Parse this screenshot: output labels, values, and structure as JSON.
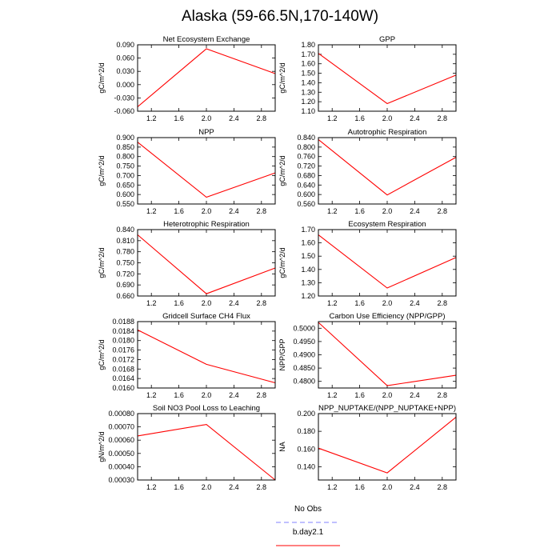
{
  "title": "Alaska (59-66.5N,170-140W)",
  "legend": {
    "placement": "bottom-center",
    "entries": [
      {
        "label": "No Obs",
        "color": "#8080ff",
        "dash": true
      },
      {
        "label": "b.day2.1",
        "color": "#ff0000",
        "dash": false
      }
    ]
  },
  "chart_data": [
    {
      "type": "line",
      "title": "Net Ecosystem Exchange",
      "ylabel": "gC/m^2/d",
      "xlim": [
        1.0,
        3.0
      ],
      "ylim": [
        -0.06,
        0.09
      ],
      "xticks": [
        1.2,
        1.6,
        2.0,
        2.4,
        2.8
      ],
      "xtick_labels": [
        "1.2",
        "1.6",
        "2.0",
        "2.4",
        "2.8"
      ],
      "yticks": [
        -0.06,
        -0.03,
        0.0,
        0.03,
        0.06,
        0.09
      ],
      "ytick_labels": [
        "-0.060",
        "-0.030",
        "0.000",
        "0.030",
        "0.060",
        "0.090"
      ],
      "series": [
        {
          "name": "b.day2.1",
          "color": "#ff0000",
          "x": [
            1,
            2,
            3
          ],
          "y": [
            -0.05,
            0.081,
            0.025
          ]
        }
      ]
    },
    {
      "type": "line",
      "title": "GPP",
      "ylabel": "gC/m^2/d",
      "xlim": [
        1.0,
        3.0
      ],
      "ylim": [
        1.1,
        1.8
      ],
      "xticks": [
        1.2,
        1.6,
        2.0,
        2.4,
        2.8
      ],
      "xtick_labels": [
        "1.2",
        "1.6",
        "2.0",
        "2.4",
        "2.8"
      ],
      "yticks": [
        1.1,
        1.2,
        1.3,
        1.4,
        1.5,
        1.6,
        1.7,
        1.8
      ],
      "ytick_labels": [
        "1.10",
        "1.20",
        "1.30",
        "1.40",
        "1.50",
        "1.60",
        "1.70",
        "1.80"
      ],
      "series": [
        {
          "name": "b.day2.1",
          "color": "#ff0000",
          "x": [
            1,
            2,
            3
          ],
          "y": [
            1.71,
            1.18,
            1.48
          ]
        }
      ]
    },
    {
      "type": "line",
      "title": "NPP",
      "ylabel": "gC/m^2/d",
      "xlim": [
        1.0,
        3.0
      ],
      "ylim": [
        0.55,
        0.9
      ],
      "xticks": [
        1.2,
        1.6,
        2.0,
        2.4,
        2.8
      ],
      "xtick_labels": [
        "1.2",
        "1.6",
        "2.0",
        "2.4",
        "2.8"
      ],
      "yticks": [
        0.55,
        0.6,
        0.65,
        0.7,
        0.75,
        0.8,
        0.85,
        0.9
      ],
      "ytick_labels": [
        "0.550",
        "0.600",
        "0.650",
        "0.700",
        "0.750",
        "0.800",
        "0.850",
        "0.900"
      ],
      "series": [
        {
          "name": "b.day2.1",
          "color": "#ff0000",
          "x": [
            1,
            2,
            3
          ],
          "y": [
            0.876,
            0.586,
            0.714
          ]
        }
      ]
    },
    {
      "type": "line",
      "title": "Autotrophic Respiration",
      "ylabel": "gC/m^2/d",
      "xlim": [
        1.0,
        3.0
      ],
      "ylim": [
        0.56,
        0.84
      ],
      "xticks": [
        1.2,
        1.6,
        2.0,
        2.4,
        2.8
      ],
      "xtick_labels": [
        "1.2",
        "1.6",
        "2.0",
        "2.4",
        "2.8"
      ],
      "yticks": [
        0.56,
        0.6,
        0.64,
        0.68,
        0.72,
        0.76,
        0.8,
        0.84
      ],
      "ytick_labels": [
        "0.560",
        "0.600",
        "0.640",
        "0.680",
        "0.720",
        "0.760",
        "0.800",
        "0.840"
      ],
      "series": [
        {
          "name": "b.day2.1",
          "color": "#ff0000",
          "x": [
            1,
            2,
            3
          ],
          "y": [
            0.832,
            0.598,
            0.757
          ]
        }
      ]
    },
    {
      "type": "line",
      "title": "Heterotrophic Respiration",
      "ylabel": "gC/m^2/d",
      "xlim": [
        1.0,
        3.0
      ],
      "ylim": [
        0.66,
        0.84
      ],
      "xticks": [
        1.2,
        1.6,
        2.0,
        2.4,
        2.8
      ],
      "xtick_labels": [
        "1.2",
        "1.6",
        "2.0",
        "2.4",
        "2.8"
      ],
      "yticks": [
        0.66,
        0.69,
        0.72,
        0.75,
        0.78,
        0.81,
        0.84
      ],
      "ytick_labels": [
        "0.660",
        "0.690",
        "0.720",
        "0.750",
        "0.780",
        "0.810",
        "0.840"
      ],
      "series": [
        {
          "name": "b.day2.1",
          "color": "#ff0000",
          "x": [
            1,
            2,
            3
          ],
          "y": [
            0.826,
            0.666,
            0.736
          ]
        }
      ]
    },
    {
      "type": "line",
      "title": "Ecosystem Respiration",
      "ylabel": "gC/m^2/d",
      "xlim": [
        1.0,
        3.0
      ],
      "ylim": [
        1.2,
        1.7
      ],
      "xticks": [
        1.2,
        1.6,
        2.0,
        2.4,
        2.8
      ],
      "xtick_labels": [
        "1.2",
        "1.6",
        "2.0",
        "2.4",
        "2.8"
      ],
      "yticks": [
        1.2,
        1.3,
        1.4,
        1.5,
        1.6,
        1.7
      ],
      "ytick_labels": [
        "1.20",
        "1.30",
        "1.40",
        "1.50",
        "1.60",
        "1.70"
      ],
      "series": [
        {
          "name": "b.day2.1",
          "color": "#ff0000",
          "x": [
            1,
            2,
            3
          ],
          "y": [
            1.66,
            1.26,
            1.49
          ]
        }
      ]
    },
    {
      "type": "line",
      "title": "Gridcell Surface CH4 Flux",
      "ylabel": "gC/m^2/d",
      "xlim": [
        1.0,
        3.0
      ],
      "ylim": [
        0.016,
        0.0188
      ],
      "xticks": [
        1.2,
        1.6,
        2.0,
        2.4,
        2.8
      ],
      "xtick_labels": [
        "1.2",
        "1.6",
        "2.0",
        "2.4",
        "2.8"
      ],
      "yticks": [
        0.016,
        0.0164,
        0.0168,
        0.0172,
        0.0176,
        0.018,
        0.0184,
        0.0188
      ],
      "ytick_labels": [
        "0.0160",
        "0.0164",
        "0.0168",
        "0.0172",
        "0.0176",
        "0.0180",
        "0.0184",
        "0.0188"
      ],
      "series": [
        {
          "name": "b.day2.1",
          "color": "#ff0000",
          "x": [
            1,
            2,
            3
          ],
          "y": [
            0.01845,
            0.017,
            0.01622
          ]
        }
      ]
    },
    {
      "type": "line",
      "title": "Carbon Use Efficiency (NPP/GPP)",
      "ylabel": "NPP/GPP",
      "xlim": [
        1.0,
        3.0
      ],
      "ylim": [
        0.4775,
        0.5025
      ],
      "xticks": [
        1.2,
        1.6,
        2.0,
        2.4,
        2.8
      ],
      "xtick_labels": [
        "1.2",
        "1.6",
        "2.0",
        "2.4",
        "2.8"
      ],
      "yticks": [
        0.48,
        0.485,
        0.49,
        0.495,
        0.5
      ],
      "ytick_labels": [
        "0.4800",
        "0.4850",
        "0.4900",
        "0.4950",
        "0.5000"
      ],
      "series": [
        {
          "name": "b.day2.1",
          "color": "#ff0000",
          "x": [
            1,
            2,
            3
          ],
          "y": [
            0.5022,
            0.4784,
            0.4823
          ]
        }
      ]
    },
    {
      "type": "line",
      "title": "Soil NO3 Pool Loss to Leaching",
      "ylabel": "gN/m^2/d",
      "xlim": [
        1.0,
        3.0
      ],
      "ylim": [
        0.0003,
        0.0008
      ],
      "xticks": [
        1.2,
        1.6,
        2.0,
        2.4,
        2.8
      ],
      "xtick_labels": [
        "1.2",
        "1.6",
        "2.0",
        "2.4",
        "2.8"
      ],
      "yticks": [
        0.0003,
        0.0004,
        0.0005,
        0.0006,
        0.0007,
        0.0008
      ],
      "ytick_labels": [
        "0.00030",
        "0.00040",
        "0.00050",
        "0.00060",
        "0.00070",
        "0.00080"
      ],
      "series": [
        {
          "name": "b.day2.1",
          "color": "#ff0000",
          "x": [
            1,
            2,
            3
          ],
          "y": [
            0.000632,
            0.000718,
            0.0003
          ]
        }
      ]
    },
    {
      "type": "line",
      "title": "NPP_NUPTAKE/(NPP_NUPTAKE+NPP)",
      "ylabel": "NA",
      "xlim": [
        1.0,
        3.0
      ],
      "ylim": [
        0.125,
        0.2
      ],
      "xticks": [
        1.2,
        1.6,
        2.0,
        2.4,
        2.8
      ],
      "xtick_labels": [
        "1.2",
        "1.6",
        "2.0",
        "2.4",
        "2.8"
      ],
      "yticks": [
        0.14,
        0.16,
        0.18,
        0.2
      ],
      "ytick_labels": [
        "0.140",
        "0.160",
        "0.180",
        "0.200"
      ],
      "series": [
        {
          "name": "b.day2.1",
          "color": "#ff0000",
          "x": [
            1,
            2,
            3
          ],
          "y": [
            0.161,
            0.133,
            0.196
          ]
        }
      ]
    }
  ]
}
